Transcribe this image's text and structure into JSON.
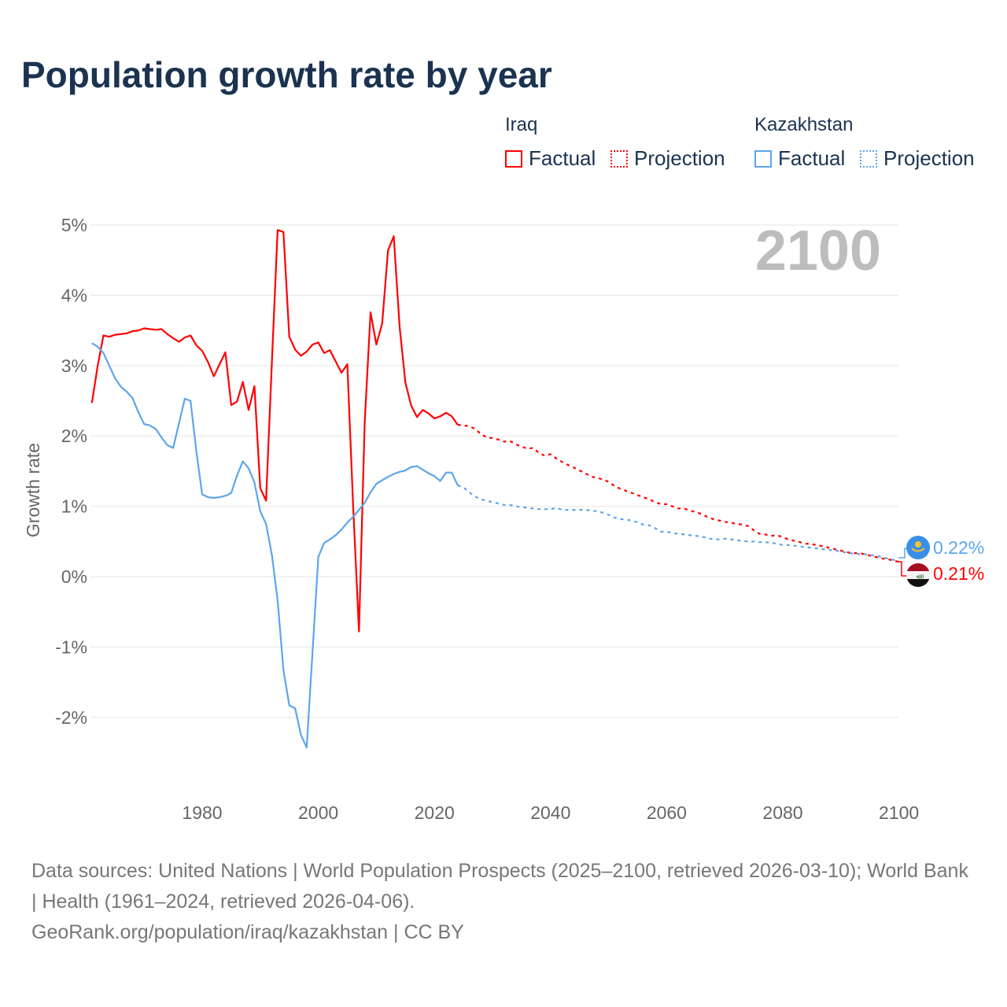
{
  "title": "Population growth rate by year",
  "legend": {
    "groups": [
      {
        "name": "Iraq",
        "factual": "Factual",
        "projection": "Projection",
        "color": "#ff0000"
      },
      {
        "name": "Kazakhstan",
        "factual": "Factual",
        "projection": "Projection",
        "color": "#5ea5ec"
      }
    ]
  },
  "year_label": "2100",
  "end_labels": {
    "kazakhstan": "0.22%",
    "iraq": "0.21%"
  },
  "footer": {
    "line1": "Data sources: United Nations | World Population Prospects (2025–2100, retrieved 2026-03-10); World Bank | Health (1961–2024, retrieved 2026-04-06).",
    "line2": "GeoRank.org/population/iraq/kazakhstan | CC BY"
  },
  "chart_data": {
    "type": "line",
    "title": "Population growth rate by year",
    "xlabel": "",
    "ylabel": "Growth rate",
    "xlim": [
      1961,
      2100
    ],
    "ylim": [
      -3,
      5
    ],
    "xticks": [
      "1980",
      "2000",
      "2020",
      "2040",
      "2060",
      "2080",
      "2100"
    ],
    "yticks": [
      "5%",
      "4%",
      "3%",
      "2%",
      "1%",
      "0%",
      "-1%",
      "-2%"
    ],
    "grid": true,
    "series": [
      {
        "name": "Iraq Factual",
        "start_year": 1961,
        "values": [
          2.47,
          3.0,
          3.43,
          3.41,
          3.44,
          3.45,
          3.46,
          3.49,
          3.5,
          3.53,
          3.52,
          3.51,
          3.52,
          3.45,
          3.39,
          3.34,
          3.4,
          3.43,
          3.29,
          3.21,
          3.05,
          2.85,
          3.02,
          3.19,
          2.44,
          2.49,
          2.77,
          2.37,
          2.71,
          1.26,
          1.08,
          3.05,
          4.93,
          4.9,
          3.41,
          3.23,
          3.14,
          3.2,
          3.3,
          3.33,
          3.18,
          3.22,
          3.06,
          2.9,
          3.02,
          1.0,
          -0.78,
          2.2,
          3.76,
          3.3,
          3.6,
          4.64,
          4.84,
          3.56,
          2.76,
          2.43,
          2.27,
          2.37,
          2.32,
          2.25,
          2.28,
          2.33,
          2.28,
          2.16
        ]
      },
      {
        "name": "Iraq Projection",
        "start_year": 2024,
        "values": [
          2.16,
          2.15,
          2.14,
          2.1,
          2.03,
          1.98,
          1.97,
          1.95,
          1.92,
          1.93,
          1.88,
          1.85,
          1.82,
          1.83,
          1.76,
          1.72,
          1.74,
          1.68,
          1.63,
          1.59,
          1.55,
          1.51,
          1.47,
          1.42,
          1.41,
          1.38,
          1.35,
          1.29,
          1.25,
          1.22,
          1.19,
          1.16,
          1.13,
          1.1,
          1.06,
          1.03,
          1.03,
          1.0,
          0.97,
          0.97,
          0.94,
          0.92,
          0.89,
          0.85,
          0.82,
          0.8,
          0.78,
          0.77,
          0.75,
          0.74,
          0.72,
          0.66,
          0.61,
          0.6,
          0.58,
          0.59,
          0.56,
          0.53,
          0.51,
          0.49,
          0.47,
          0.46,
          0.45,
          0.43,
          0.41,
          0.39,
          0.37,
          0.35,
          0.33,
          0.34,
          0.32,
          0.3,
          0.28,
          0.26,
          0.25,
          0.23,
          0.21
        ]
      },
      {
        "name": "Kazakhstan Factual",
        "start_year": 1961,
        "values": [
          3.32,
          3.27,
          3.18,
          3.0,
          2.82,
          2.7,
          2.63,
          2.54,
          2.34,
          2.17,
          2.15,
          2.1,
          1.98,
          1.87,
          1.83,
          2.18,
          2.53,
          2.5,
          1.78,
          1.17,
          1.13,
          1.12,
          1.13,
          1.15,
          1.19,
          1.44,
          1.64,
          1.54,
          1.34,
          0.93,
          0.75,
          0.31,
          -0.34,
          -1.33,
          -1.83,
          -1.87,
          -2.25,
          -2.43,
          -1.08,
          0.28,
          0.48,
          0.53,
          0.59,
          0.67,
          0.77,
          0.85,
          0.95,
          1.05,
          1.2,
          1.32,
          1.37,
          1.42,
          1.46,
          1.49,
          1.51,
          1.56,
          1.57,
          1.52,
          1.47,
          1.43,
          1.36,
          1.48,
          1.48,
          1.3
        ]
      },
      {
        "name": "Kazakhstan Projection",
        "start_year": 2024,
        "values": [
          1.3,
          1.27,
          1.2,
          1.14,
          1.1,
          1.08,
          1.06,
          1.04,
          1.02,
          1.02,
          1.0,
          0.99,
          0.98,
          0.97,
          0.96,
          0.96,
          0.96,
          0.98,
          0.95,
          0.95,
          0.95,
          0.95,
          0.95,
          0.94,
          0.93,
          0.91,
          0.88,
          0.84,
          0.82,
          0.81,
          0.8,
          0.77,
          0.74,
          0.73,
          0.69,
          0.64,
          0.64,
          0.62,
          0.61,
          0.6,
          0.59,
          0.58,
          0.57,
          0.55,
          0.53,
          0.53,
          0.54,
          0.53,
          0.52,
          0.51,
          0.5,
          0.5,
          0.49,
          0.49,
          0.48,
          0.47,
          0.45,
          0.45,
          0.44,
          0.43,
          0.42,
          0.41,
          0.4,
          0.39,
          0.38,
          0.37,
          0.36,
          0.34,
          0.33,
          0.32,
          0.32,
          0.31,
          0.3,
          0.28,
          0.26,
          0.24,
          0.22
        ]
      }
    ]
  }
}
